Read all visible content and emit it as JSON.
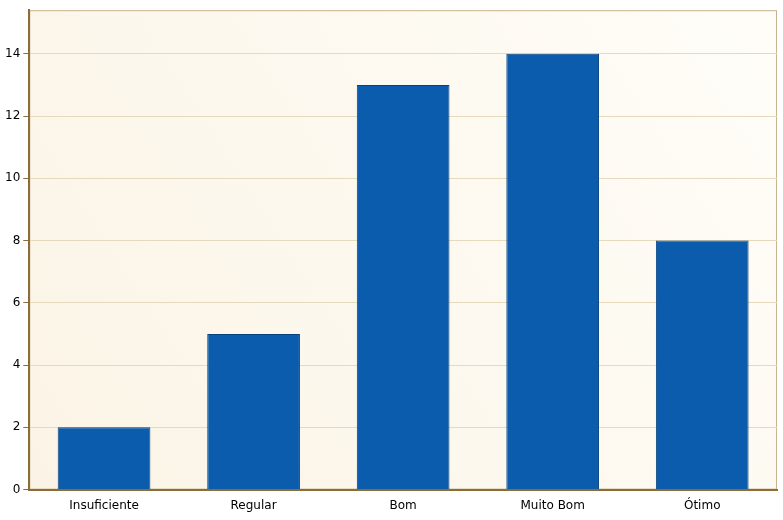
{
  "chart_data": {
    "type": "bar",
    "categories": [
      "Insuficiente",
      "Regular",
      "Bom",
      "Muito Bom",
      "Ótimo"
    ],
    "values": [
      2,
      5,
      13,
      14,
      8
    ],
    "color": "#0b5cad",
    "ylim": [
      0,
      15.4
    ],
    "yticks": [
      0,
      2,
      4,
      6,
      8,
      10,
      12,
      14
    ],
    "grid": true
  }
}
